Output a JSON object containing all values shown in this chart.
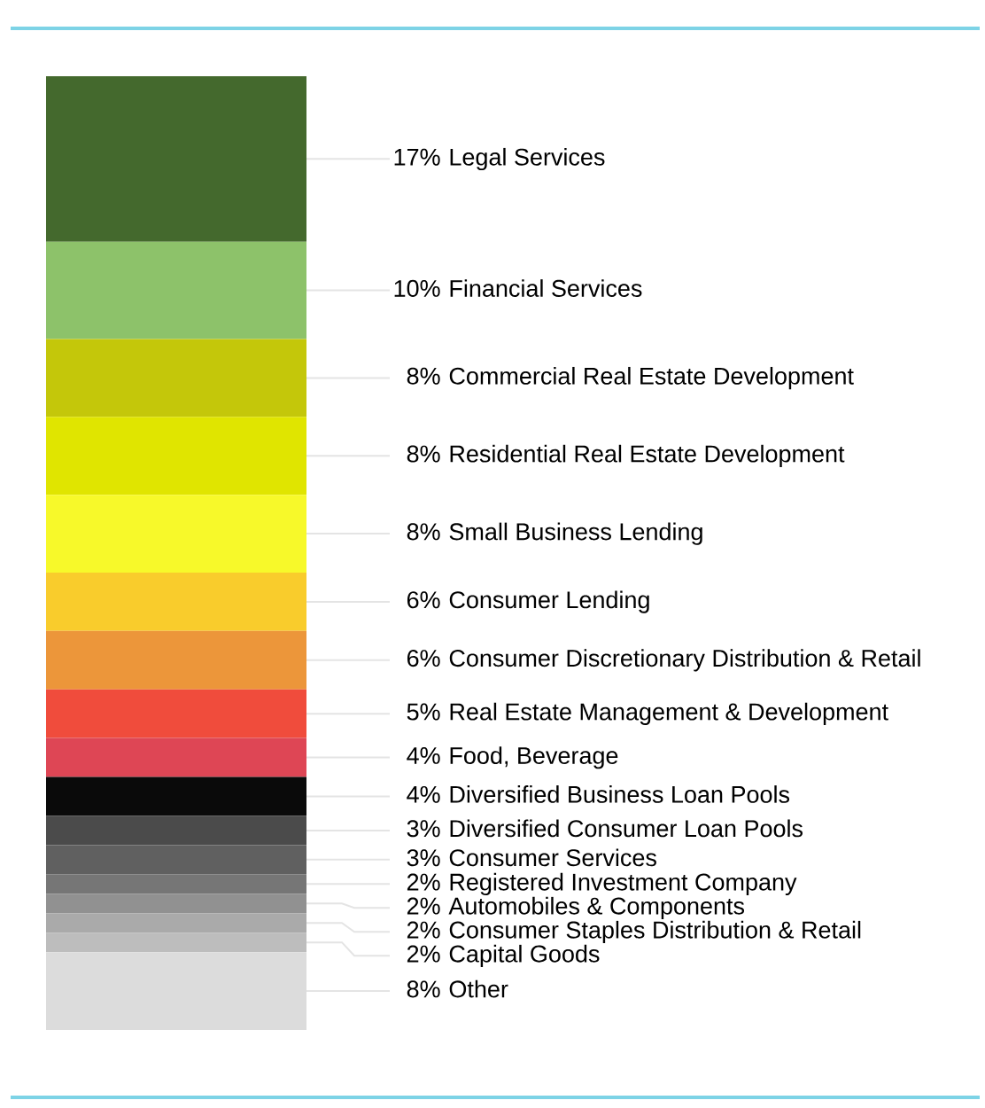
{
  "chart_data": {
    "type": "bar",
    "stacked": true,
    "categories": [
      null
    ],
    "series": [
      {
        "name": "Other",
        "color": "#dcdcdc",
        "values": [
          8
        ],
        "value_labels": [
          "8%"
        ]
      },
      {
        "name": "Capital Goods",
        "color": "#bdbdbd",
        "values": [
          2
        ],
        "value_labels": [
          "2%"
        ]
      },
      {
        "name": "Consumer Staples Distribution & Retail",
        "color": "#aaaaaa",
        "values": [
          2
        ],
        "value_labels": [
          "2%"
        ]
      },
      {
        "name": "Automobiles & Components",
        "color": "#919191",
        "values": [
          2
        ],
        "value_labels": [
          "2%"
        ]
      },
      {
        "name": "Registered Investment Company",
        "color": "#767676",
        "values": [
          2
        ],
        "value_labels": [
          "2%"
        ]
      },
      {
        "name": "Consumer Services",
        "color": "#606060",
        "values": [
          3
        ],
        "value_labels": [
          "3%"
        ]
      },
      {
        "name": "Diversified Consumer Loan Pools",
        "color": "#4b4b4b",
        "values": [
          3
        ],
        "value_labels": [
          "3%"
        ]
      },
      {
        "name": "Diversified Business Loan Pools",
        "color": "#0a0a0a",
        "values": [
          4
        ],
        "value_labels": [
          "4%"
        ]
      },
      {
        "name": "Food, Beverage",
        "color": "#de4655",
        "values": [
          4
        ],
        "value_labels": [
          "4%"
        ]
      },
      {
        "name": "Real Estate Management & Development",
        "color": "#f04c3c",
        "values": [
          5
        ],
        "value_labels": [
          "5%"
        ]
      },
      {
        "name": "Consumer Discretionary Distribution & Retail",
        "color": "#ec963a",
        "values": [
          6
        ],
        "value_labels": [
          "6%"
        ]
      },
      {
        "name": "Consumer Lending",
        "color": "#f9cc2c",
        "values": [
          6
        ],
        "value_labels": [
          "6%"
        ]
      },
      {
        "name": "Small Business Lending",
        "color": "#f7f92a",
        "values": [
          8
        ],
        "value_labels": [
          "8%"
        ]
      },
      {
        "name": "Residential Real Estate Development",
        "color": "#e0e500",
        "values": [
          8
        ],
        "value_labels": [
          "8%"
        ]
      },
      {
        "name": "Commercial Real Estate Development",
        "color": "#c4c70a",
        "values": [
          8
        ],
        "value_labels": [
          "8%"
        ]
      },
      {
        "name": "Financial Services",
        "color": "#8dc26a",
        "values": [
          10
        ],
        "value_labels": [
          "10%"
        ]
      },
      {
        "name": "Legal Services",
        "color": "#44692d",
        "values": [
          17
        ],
        "value_labels": [
          "17%"
        ]
      }
    ]
  }
}
